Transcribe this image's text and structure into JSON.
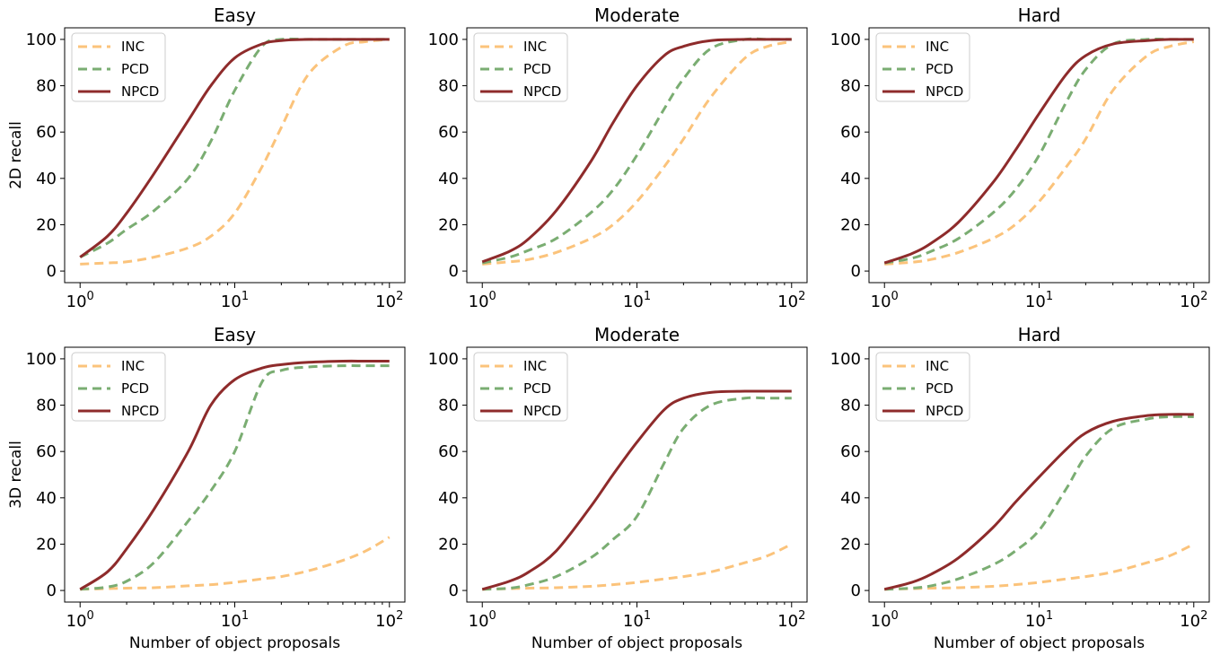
{
  "figure": {
    "axis_labels": {
      "row_ylabels": [
        "2D recall",
        "3D recall"
      ],
      "xlabel": "Number of object proposals"
    }
  },
  "series_styles": [
    {
      "name": "INC",
      "color": "#fbc37b",
      "dash": "10,6",
      "width": 3
    },
    {
      "name": "PCD",
      "color": "#7aad72",
      "dash": "10,6",
      "width": 3
    },
    {
      "name": "NPCD",
      "color": "#8e2b2b",
      "dash": "",
      "width": 3
    }
  ],
  "chart_data": [
    {
      "type": "line",
      "title": "Easy",
      "xlabel": "",
      "ylabel": "2D recall",
      "xscale": "log",
      "xlim": [
        1,
        100
      ],
      "ylim": [
        0,
        100
      ],
      "legend": "top-left",
      "yticks": [
        0,
        20,
        40,
        60,
        80,
        100
      ],
      "xticks": [
        "10^0",
        "10^1",
        "10^2"
      ],
      "x": [
        1,
        1.5,
        2,
        3,
        5,
        7,
        10,
        15,
        20,
        30,
        50,
        70,
        100
      ],
      "series": [
        {
          "name": "INC",
          "values": [
            3,
            3.5,
            4,
            6,
            10,
            15,
            25,
            45,
            62,
            85,
            97,
            99,
            100
          ]
        },
        {
          "name": "PCD",
          "values": [
            6,
            12,
            18,
            26,
            40,
            56,
            78,
            97,
            100,
            100,
            100,
            100,
            100
          ]
        },
        {
          "name": "NPCD",
          "values": [
            6,
            15,
            25,
            42,
            65,
            80,
            92,
            98,
            99.5,
            100,
            100,
            100,
            100
          ]
        }
      ]
    },
    {
      "type": "line",
      "title": "Moderate",
      "xlabel": "",
      "ylabel": "",
      "xscale": "log",
      "xlim": [
        1,
        100
      ],
      "ylim": [
        0,
        100
      ],
      "legend": "top-left",
      "yticks": [
        0,
        20,
        40,
        60,
        80,
        100
      ],
      "xticks": [
        "10^0",
        "10^1",
        "10^2"
      ],
      "x": [
        1,
        1.5,
        2,
        3,
        5,
        7,
        10,
        15,
        20,
        30,
        50,
        70,
        100
      ],
      "series": [
        {
          "name": "INC",
          "values": [
            3,
            4,
            5,
            8,
            14,
            20,
            30,
            45,
            57,
            75,
            92,
            97,
            99
          ]
        },
        {
          "name": "PCD",
          "values": [
            3.5,
            6,
            9,
            14,
            25,
            35,
            50,
            70,
            83,
            96,
            100,
            100,
            100
          ]
        },
        {
          "name": "NPCD",
          "values": [
            4,
            8.5,
            14,
            26,
            47,
            64,
            80,
            93,
            97,
            99.5,
            100,
            100,
            100
          ]
        }
      ]
    },
    {
      "type": "line",
      "title": "Hard",
      "xlabel": "",
      "ylabel": "",
      "xscale": "log",
      "xlim": [
        1,
        100
      ],
      "ylim": [
        0,
        100
      ],
      "legend": "top-left",
      "yticks": [
        0,
        20,
        40,
        60,
        80,
        100
      ],
      "xticks": [
        "10^0",
        "10^1",
        "10^2"
      ],
      "x": [
        1,
        1.5,
        2,
        3,
        5,
        7,
        10,
        15,
        20,
        30,
        50,
        70,
        100
      ],
      "series": [
        {
          "name": "INC",
          "values": [
            3,
            3.8,
            5,
            8,
            14,
            20,
            30,
            45,
            57,
            78,
            93,
            97,
            99
          ]
        },
        {
          "name": "PCD",
          "values": [
            3.5,
            5.5,
            8.5,
            14,
            25,
            35,
            50,
            73,
            87,
            98,
            100,
            100,
            100
          ]
        },
        {
          "name": "NPCD",
          "values": [
            3.5,
            7.5,
            12,
            21,
            38,
            52,
            68,
            85,
            93,
            98,
            99.5,
            100,
            100
          ]
        }
      ]
    },
    {
      "type": "line",
      "title": "Easy",
      "xlabel": "Number of object proposals",
      "ylabel": "3D recall",
      "xscale": "log",
      "xlim": [
        1,
        100
      ],
      "ylim": [
        0,
        100
      ],
      "legend": "top-left",
      "yticks": [
        0,
        20,
        40,
        60,
        80,
        100
      ],
      "xticks": [
        "10^0",
        "10^1",
        "10^2"
      ],
      "x": [
        1,
        1.5,
        2,
        3,
        5,
        7,
        10,
        15,
        20,
        30,
        50,
        70,
        100
      ],
      "series": [
        {
          "name": "INC",
          "values": [
            0.5,
            0.8,
            1,
            1.2,
            2,
            2.5,
            3.5,
            5,
            6,
            8.5,
            13,
            17,
            23
          ]
        },
        {
          "name": "PCD",
          "values": [
            0.5,
            1.5,
            4,
            12,
            30,
            43,
            60,
            90,
            95,
            96.5,
            97,
            97,
            97
          ]
        },
        {
          "name": "NPCD",
          "values": [
            0.5,
            8,
            18,
            35,
            60,
            80,
            91,
            96,
            97.5,
            98.5,
            99,
            99,
            99
          ]
        }
      ]
    },
    {
      "type": "line",
      "title": "Moderate",
      "xlabel": "Number of object proposals",
      "ylabel": "",
      "xscale": "log",
      "xlim": [
        1,
        100
      ],
      "ylim": [
        0,
        100
      ],
      "legend": "top-left",
      "yticks": [
        0,
        20,
        40,
        60,
        80,
        100
      ],
      "xticks": [
        "10^0",
        "10^1",
        "10^2"
      ],
      "x": [
        1,
        1.5,
        2,
        3,
        5,
        7,
        10,
        15,
        20,
        30,
        50,
        70,
        100
      ],
      "series": [
        {
          "name": "INC",
          "values": [
            0.5,
            0.8,
            1,
            1.2,
            1.8,
            2.5,
            3.5,
            5,
            6,
            8,
            12,
            15,
            20
          ]
        },
        {
          "name": "PCD",
          "values": [
            0.5,
            1,
            2.5,
            6,
            14,
            22,
            32,
            55,
            70,
            80,
            83,
            83,
            83
          ]
        },
        {
          "name": "NPCD",
          "values": [
            0.5,
            4,
            8,
            17,
            36,
            50,
            64,
            78,
            83,
            85.5,
            86,
            86,
            86
          ]
        }
      ]
    },
    {
      "type": "line",
      "title": "Hard",
      "xlabel": "Number of object proposals",
      "ylabel": "",
      "xscale": "log",
      "xlim": [
        1,
        100
      ],
      "ylim": [
        0,
        100
      ],
      "legend": "top-left",
      "yticks": [
        0,
        20,
        40,
        60,
        80,
        100
      ],
      "xticks": [
        "10^0",
        "10^1",
        "10^2"
      ],
      "x": [
        1,
        1.5,
        2,
        3,
        5,
        7,
        10,
        15,
        20,
        30,
        50,
        70,
        100
      ],
      "series": [
        {
          "name": "INC",
          "values": [
            0.5,
            0.8,
            1,
            1.2,
            1.8,
            2.5,
            3.5,
            5,
            6,
            8,
            12,
            15,
            20
          ]
        },
        {
          "name": "PCD",
          "values": [
            0.5,
            1,
            2,
            5,
            11,
            17,
            26,
            44,
            58,
            70,
            74,
            75,
            75
          ]
        },
        {
          "name": "NPCD",
          "values": [
            0.5,
            3.5,
            7,
            14,
            27,
            38,
            49,
            61,
            68,
            73,
            75.5,
            76,
            76
          ]
        }
      ]
    }
  ]
}
